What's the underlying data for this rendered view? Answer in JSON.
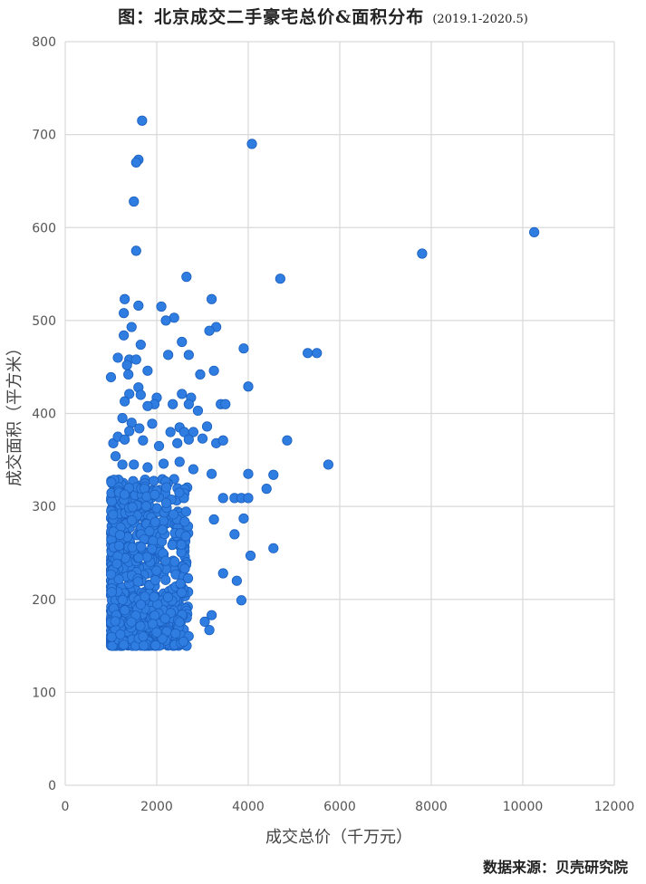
{
  "chart_data": {
    "type": "scatter",
    "title": "图：北京成交二手豪宅总价&面积分布",
    "subtitle": "(2019.1-2020.5)",
    "xlabel": "成交总价（千万元）",
    "ylabel": "成交面积（平方米）",
    "xlim": [
      0,
      12000
    ],
    "ylim": [
      0,
      800
    ],
    "xticks": [
      "0",
      "2000",
      "4000",
      "6000",
      "8000",
      "10000",
      "12000"
    ],
    "yticks": [
      "0",
      "100",
      "200",
      "300",
      "400",
      "500",
      "600",
      "700",
      "800"
    ],
    "grid": true,
    "marker_color": "#2f7de1",
    "points": [
      [
        1680,
        715
      ],
      [
        4080,
        690
      ],
      [
        1600,
        673
      ],
      [
        1550,
        670
      ],
      [
        1500,
        628
      ],
      [
        10250,
        595
      ],
      [
        1550,
        575
      ],
      [
        7800,
        572
      ],
      [
        2650,
        547
      ],
      [
        4700,
        545
      ],
      [
        1300,
        523
      ],
      [
        3200,
        523
      ],
      [
        1600,
        516
      ],
      [
        2100,
        515
      ],
      [
        1280,
        508
      ],
      [
        2380,
        503
      ],
      [
        2200,
        500
      ],
      [
        1450,
        493
      ],
      [
        3300,
        493
      ],
      [
        3150,
        489
      ],
      [
        1280,
        484
      ],
      [
        2550,
        477
      ],
      [
        1650,
        474
      ],
      [
        3900,
        470
      ],
      [
        1150,
        460
      ],
      [
        1400,
        458
      ],
      [
        1550,
        458
      ],
      [
        2700,
        463
      ],
      [
        2250,
        463
      ],
      [
        5300,
        465
      ],
      [
        5500,
        465
      ],
      [
        1350,
        452
      ],
      [
        1800,
        446
      ],
      [
        1380,
        442
      ],
      [
        3250,
        446
      ],
      [
        2950,
        442
      ],
      [
        1000,
        439
      ],
      [
        4000,
        429
      ],
      [
        1600,
        428
      ],
      [
        1650,
        420
      ],
      [
        1400,
        421
      ],
      [
        2000,
        417
      ],
      [
        2550,
        421
      ],
      [
        2750,
        417
      ],
      [
        1300,
        413
      ],
      [
        1950,
        410
      ],
      [
        1800,
        408
      ],
      [
        2350,
        410
      ],
      [
        2700,
        410
      ],
      [
        3400,
        410
      ],
      [
        3500,
        410
      ],
      [
        2900,
        403
      ],
      [
        1250,
        395
      ],
      [
        1450,
        390
      ],
      [
        1900,
        389
      ],
      [
        3100,
        386
      ],
      [
        2500,
        385
      ],
      [
        1400,
        381
      ],
      [
        1620,
        384
      ],
      [
        2300,
        380
      ],
      [
        2600,
        380
      ],
      [
        2800,
        380
      ],
      [
        1050,
        368
      ],
      [
        1150,
        375
      ],
      [
        1300,
        372
      ],
      [
        1700,
        371
      ],
      [
        2050,
        365
      ],
      [
        2450,
        368
      ],
      [
        2700,
        372
      ],
      [
        3000,
        373
      ],
      [
        3300,
        368
      ],
      [
        3450,
        371
      ],
      [
        4850,
        371
      ],
      [
        1100,
        354
      ],
      [
        1250,
        345
      ],
      [
        1500,
        345
      ],
      [
        1800,
        342
      ],
      [
        2150,
        346
      ],
      [
        2500,
        348
      ],
      [
        2800,
        340
      ],
      [
        5750,
        345
      ],
      [
        3200,
        335
      ],
      [
        4000,
        335
      ],
      [
        4550,
        334
      ],
      [
        4400,
        319
      ],
      [
        3700,
        309
      ],
      [
        3850,
        309
      ],
      [
        4000,
        309
      ],
      [
        3450,
        309
      ],
      [
        3900,
        287
      ],
      [
        3250,
        286
      ],
      [
        4550,
        255
      ],
      [
        4050,
        247
      ],
      [
        3700,
        270
      ],
      [
        3450,
        228
      ],
      [
        3750,
        220
      ],
      [
        3850,
        199
      ],
      [
        3200,
        183
      ],
      [
        3050,
        176
      ],
      [
        3150,
        167
      ]
    ],
    "dense_cluster": {
      "note": "",
      "x_range": [
        1000,
        2700
      ],
      "y_range": [
        150,
        330
      ],
      "count": 900
    }
  },
  "source_label": "数据来源：贝壳研究院"
}
